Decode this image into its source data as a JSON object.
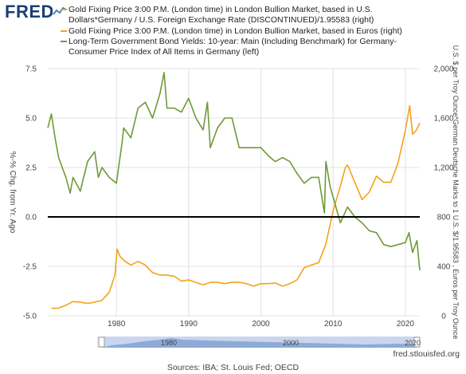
{
  "header": {
    "logo_text": "FRED",
    "logo_icon": "line-chart-icon"
  },
  "legend": [
    {
      "label": "Gold Fixing Price 3:00 P.M. (London time) in London Bullion Market, based in U.S. Dollars*Germany / U.S. Foreign Exchange Rate (DISCONTINUED)/1.95583 (right)",
      "color": "#f2a31b"
    },
    {
      "label": "Gold Fixing Price 3:00 P.M. (London time) in London Bullion Market, based in Euros (right)",
      "color": "#f2a31b"
    },
    {
      "label": "Long-Term Government Bond Yields: 10-year: Main (Including Benchmark) for Germany-Consumer Price Index of All Items in Germany (left)",
      "color": "#6f9a37"
    }
  ],
  "chart_data": {
    "type": "line",
    "left_axis": {
      "label": "%-% Chg. from Yr. Ago",
      "ticks": [
        "7.5",
        "5.0",
        "2.5",
        "0.0",
        "-2.5",
        "-5.0"
      ],
      "tick_values": [
        7.5,
        5.0,
        2.5,
        0.0,
        -2.5,
        -5.0
      ],
      "range": [
        -5.0,
        7.5
      ]
    },
    "right_axis": {
      "label": "U.S. $ per Troy Ounce*German Deutsche Marks to 1 U.S. $/1.95583 , Euros per Troy Ounce",
      "ticks": [
        "2,000",
        "1,600",
        "1,200",
        "800",
        "400",
        "0"
      ],
      "tick_values": [
        2000,
        1600,
        1200,
        800,
        400,
        0
      ],
      "range": [
        0,
        2000
      ]
    },
    "x_axis": {
      "ticks": [
        "1980",
        "1990",
        "2000",
        "2010",
        "2020"
      ],
      "tick_values": [
        1980,
        1990,
        2000,
        2010,
        2020
      ],
      "range": [
        1970.5,
        2022
      ]
    },
    "zero_line": 0,
    "series": [
      {
        "name": "Gold Fixing Price 3:00 P.M. (London time) in London Bullion Market, based in U.S. Dollars*Germany / U.S. Foreign Exchange Rate (DISCONTINUED)/1.95583 / Gold Fixing Price 3:00 P.M. (London time) in London Bullion Market, based in Euros",
        "axis": "right",
        "color": "#f2a31b",
        "x": [
          1971,
          1972,
          1973,
          1974,
          1975,
          1976,
          1977,
          1978,
          1979,
          1979.8,
          1980.1,
          1980.5,
          1981,
          1982,
          1983,
          1984,
          1985,
          1986,
          1987,
          1988,
          1989,
          1990,
          1991,
          1992,
          1993,
          1994,
          1995,
          1996,
          1997,
          1998,
          1999,
          2000,
          2001,
          2002,
          2003,
          2004,
          2005,
          2006,
          2007,
          2008,
          2009,
          2010,
          2011,
          2011.7,
          2012,
          2013,
          2014,
          2015,
          2016,
          2017,
          2018,
          2019,
          2020,
          2020.6,
          2021,
          2021.5,
          2022
        ],
        "y": [
          60,
          62,
          85,
          115,
          110,
          100,
          110,
          125,
          190,
          330,
          540,
          480,
          450,
          410,
          440,
          410,
          350,
          330,
          330,
          320,
          280,
          290,
          270,
          250,
          270,
          270,
          260,
          270,
          270,
          260,
          240,
          260,
          260,
          265,
          240,
          260,
          290,
          390,
          410,
          430,
          580,
          850,
          1050,
          1200,
          1220,
          1080,
          940,
          1000,
          1130,
          1080,
          1080,
          1240,
          1500,
          1700,
          1470,
          1500,
          1560
        ]
      },
      {
        "name": "Long-Term Government Bond Yields: 10-year: Main (Including Benchmark) for Germany-Consumer Price Index of All Items in Germany",
        "axis": "left",
        "color": "#6f9a37",
        "x": [
          1970.5,
          1971,
          1971.5,
          1972,
          1973,
          1973.6,
          1974,
          1975,
          1976,
          1977,
          1977.5,
          1978,
          1979,
          1980,
          1980.8,
          1981,
          1982,
          1983,
          1984,
          1985,
          1986,
          1986.6,
          1987,
          1988,
          1989,
          1990,
          1991,
          1992,
          1992.6,
          1993,
          1994,
          1995,
          1996,
          1997,
          1998,
          1999,
          2000,
          2001,
          2002,
          2003,
          2004,
          2005,
          2006,
          2007,
          2008,
          2008.8,
          2009,
          2009.6,
          2010,
          2011,
          2012,
          2013,
          2014,
          2015,
          2016,
          2017,
          2018,
          2019,
          2020,
          2020.5,
          2021,
          2021.6,
          2022
        ],
        "y": [
          4.5,
          5.2,
          4.0,
          3.0,
          2.0,
          1.2,
          2.0,
          1.3,
          2.8,
          3.3,
          2.0,
          2.5,
          2.0,
          1.7,
          3.8,
          4.5,
          4.0,
          5.5,
          5.8,
          5.0,
          6.2,
          7.3,
          5.5,
          5.5,
          5.3,
          6.0,
          5.0,
          4.4,
          5.8,
          3.5,
          4.5,
          5.0,
          5.0,
          3.5,
          3.5,
          3.5,
          3.5,
          3.1,
          2.8,
          3.0,
          2.8,
          2.2,
          1.7,
          2.0,
          2.0,
          0.2,
          2.8,
          1.5,
          1.0,
          -0.3,
          0.5,
          0.0,
          -0.3,
          -0.7,
          -0.8,
          -1.4,
          -1.5,
          -1.4,
          -1.3,
          -0.8,
          -1.8,
          -1.2,
          -2.7
        ]
      }
    ],
    "navigator": {
      "ticks": [
        "1980",
        "2000",
        "2020"
      ]
    }
  },
  "footer": {
    "sources": "Sources: IBA; St. Louis Fed; OECD",
    "url": "fred.stlouisfed.org"
  }
}
